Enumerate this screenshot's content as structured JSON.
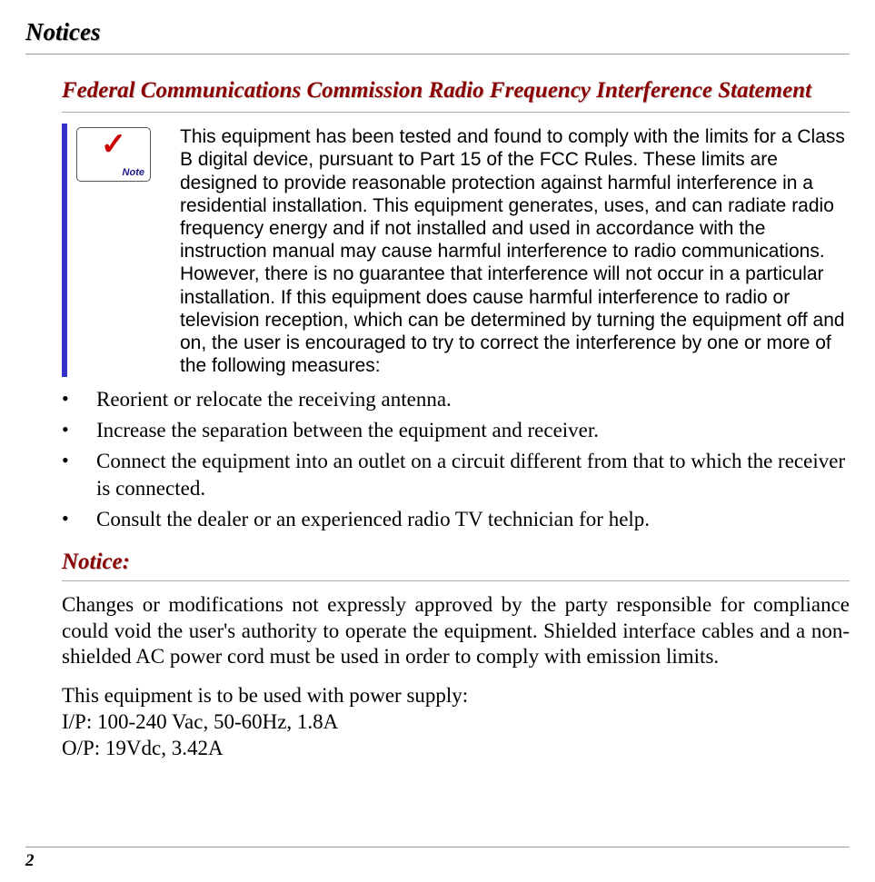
{
  "page": {
    "title": "Notices",
    "number": "2"
  },
  "section": {
    "title": "Federal Communications Commission Radio Frequency Interference Statement",
    "note_icon_label": "Note",
    "note_body": "This equipment has been tested and found to comply with the limits for a Class B digital device, pursuant to Part 15 of the FCC Rules.  These limits are designed to provide reasonable protection against harmful interference in a residential installation.  This equipment generates, uses, and can radiate radio frequency energy and if not installed and used in accordance with the instruction manual may cause harmful interference to radio communications.  However, there is no guarantee that interference will not occur in a particular installation.  If this equipment does cause harmful interference to radio or television reception, which can be determined by turning the equipment off and on, the user is encouraged to try to correct the interference by one or more of the following measures:",
    "bullets": [
      "Reorient or relocate the receiving antenna.",
      "Increase the separation between the equipment and receiver.",
      "Connect the equipment into an outlet on a circuit different from that to which the receiver is connected.",
      "Consult the dealer or an experienced radio TV technician for help."
    ]
  },
  "notice": {
    "title": "Notice:",
    "body": "Changes or modifications not expressly approved by the party responsible for compliance could void the user's authority to operate the equipment.  Shielded interface cables and a non-shielded AC power cord must be used in order to comply with emission limits.",
    "power_intro": "This equipment is to be used with power supply:",
    "power_ip": "I/P: 100-240 Vac, 50-60Hz, 1.8A",
    "power_op": "O/P: 19Vdc, 3.42A"
  },
  "colors": {
    "heading_color": "#8b0000",
    "accent_bar": "#3333cc",
    "checkmark": "#cc0000",
    "note_label": "#1a1a8a",
    "text": "#000000",
    "rule": "#999999",
    "background": "#ffffff"
  },
  "typography": {
    "title_fontsize_pt": 20,
    "section_title_fontsize_pt": 19,
    "body_serif_fontsize_pt": 17,
    "note_sans_fontsize_pt": 16,
    "page_number_fontsize_pt": 14
  }
}
